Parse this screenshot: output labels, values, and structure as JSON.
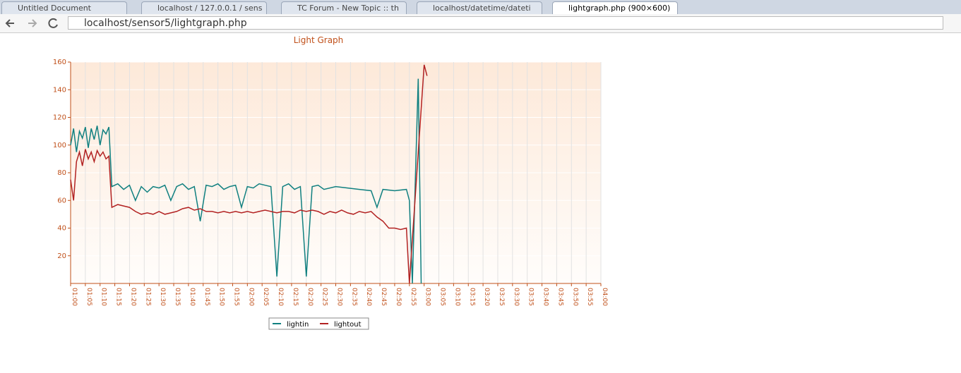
{
  "browser": {
    "tabs": [
      {
        "title": "Untitled Document"
      },
      {
        "title": "localhost / 127.0.0.1 / sens"
      },
      {
        "title": "TC Forum - New Topic :: th"
      },
      {
        "title": "localhost/datetime/dateti"
      },
      {
        "title": "lightgraph.php (900×600)"
      }
    ],
    "url": "localhost/sensor5/lightgraph.php"
  },
  "chart_data": {
    "type": "line",
    "title": "Light Graph",
    "grid": true,
    "legend": "bottom",
    "xlim": [
      60,
      240
    ],
    "xticks": [
      {
        "value": 60,
        "label": "01:00"
      },
      {
        "value": 65,
        "label": "01:05"
      },
      {
        "value": 70,
        "label": "01:10"
      },
      {
        "value": 75,
        "label": "01:15"
      },
      {
        "value": 80,
        "label": "01:20"
      },
      {
        "value": 85,
        "label": "01:25"
      },
      {
        "value": 90,
        "label": "01:30"
      },
      {
        "value": 95,
        "label": "01:35"
      },
      {
        "value": 100,
        "label": "01:40"
      },
      {
        "value": 105,
        "label": "01:45"
      },
      {
        "value": 110,
        "label": "01:50"
      },
      {
        "value": 115,
        "label": "01:55"
      },
      {
        "value": 120,
        "label": "02:00"
      },
      {
        "value": 125,
        "label": "02:05"
      },
      {
        "value": 130,
        "label": "02:10"
      },
      {
        "value": 135,
        "label": "02:15"
      },
      {
        "value": 140,
        "label": "02:20"
      },
      {
        "value": 145,
        "label": "02:25"
      },
      {
        "value": 150,
        "label": "02:30"
      },
      {
        "value": 155,
        "label": "02:35"
      },
      {
        "value": 160,
        "label": "02:40"
      },
      {
        "value": 165,
        "label": "02:45"
      },
      {
        "value": 170,
        "label": "02:50"
      },
      {
        "value": 175,
        "label": "02:55"
      },
      {
        "value": 180,
        "label": "03:00"
      },
      {
        "value": 185,
        "label": "03:05"
      },
      {
        "value": 190,
        "label": "03:10"
      },
      {
        "value": 195,
        "label": "03:15"
      },
      {
        "value": 200,
        "label": "03:20"
      },
      {
        "value": 205,
        "label": "03:25"
      },
      {
        "value": 210,
        "label": "03:30"
      },
      {
        "value": 215,
        "label": "03:35"
      },
      {
        "value": 220,
        "label": "03:40"
      },
      {
        "value": 225,
        "label": "03:45"
      },
      {
        "value": 230,
        "label": "03:50"
      },
      {
        "value": 235,
        "label": "03:55"
      },
      {
        "value": 240,
        "label": "04:00"
      }
    ],
    "ylim": [
      0,
      160
    ],
    "yticks": [
      20,
      40,
      60,
      80,
      100,
      120,
      140,
      160
    ],
    "series": [
      {
        "name": "lightin",
        "color": "#108080",
        "x": [
          60,
          61,
          62,
          63,
          64,
          65,
          66,
          67,
          68,
          69,
          70,
          71,
          72,
          73,
          74,
          76,
          78,
          80,
          82,
          84,
          86,
          88,
          90,
          92,
          94,
          96,
          98,
          100,
          102,
          104,
          106,
          108,
          110,
          112,
          114,
          116,
          118,
          120,
          122,
          124,
          126,
          128,
          130,
          132,
          134,
          136,
          138,
          140,
          142,
          144,
          146,
          150,
          154,
          158,
          162,
          164,
          166,
          170,
          174,
          175,
          176,
          178,
          179
        ],
        "values": [
          100,
          112,
          95,
          110,
          105,
          113,
          98,
          112,
          104,
          114,
          100,
          111,
          108,
          113,
          70,
          72,
          68,
          71,
          60,
          70,
          66,
          70,
          69,
          71,
          60,
          70,
          72,
          68,
          70,
          45,
          71,
          70,
          72,
          68,
          70,
          71,
          55,
          70,
          69,
          72,
          71,
          70,
          5,
          70,
          72,
          68,
          70,
          5,
          70,
          71,
          68,
          70,
          69,
          68,
          67,
          55,
          68,
          67,
          68,
          60,
          0,
          148,
          0
        ]
      },
      {
        "name": "lightout",
        "color": "#b22222",
        "x": [
          60,
          61,
          62,
          63,
          64,
          65,
          66,
          67,
          68,
          69,
          70,
          71,
          72,
          73,
          74,
          76,
          78,
          80,
          82,
          84,
          86,
          88,
          90,
          92,
          94,
          96,
          98,
          100,
          102,
          104,
          106,
          108,
          110,
          112,
          114,
          116,
          118,
          120,
          122,
          124,
          126,
          128,
          130,
          132,
          134,
          136,
          138,
          140,
          142,
          144,
          146,
          148,
          150,
          152,
          154,
          156,
          158,
          160,
          162,
          164,
          166,
          168,
          170,
          172,
          174,
          175,
          180,
          181
        ],
        "values": [
          75,
          60,
          88,
          95,
          85,
          97,
          90,
          95,
          88,
          96,
          92,
          95,
          90,
          92,
          55,
          57,
          56,
          55,
          52,
          50,
          51,
          50,
          52,
          50,
          51,
          52,
          54,
          55,
          53,
          54,
          52,
          52,
          51,
          52,
          51,
          52,
          51,
          52,
          51,
          52,
          53,
          52,
          51,
          52,
          52,
          51,
          53,
          52,
          53,
          52,
          50,
          52,
          51,
          53,
          51,
          50,
          52,
          51,
          52,
          48,
          45,
          40,
          40,
          39,
          40,
          0,
          158,
          150
        ]
      }
    ]
  }
}
